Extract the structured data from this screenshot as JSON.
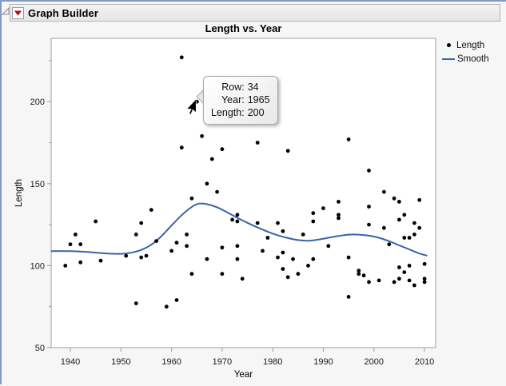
{
  "window": {
    "title": "Graph Builder"
  },
  "chart_data": {
    "type": "scatter",
    "title": "Length vs. Year",
    "xlabel": "Year",
    "ylabel": "Length",
    "xlim": [
      1936.2,
      2012.2
    ],
    "ylim": [
      50,
      238.6
    ],
    "x_ticks": [
      1940,
      1950,
      1960,
      1970,
      1980,
      1990,
      2000,
      2010
    ],
    "y_ticks": [
      50,
      100,
      150,
      200
    ],
    "y_minor_ticks": [
      75,
      125,
      175,
      225
    ],
    "grid": false,
    "legend_position": "top-right",
    "series": [
      {
        "name": "Length",
        "type": "scatter",
        "color": "#000000",
        "points": [
          [
            1939,
            100
          ],
          [
            1940,
            113
          ],
          [
            1941,
            119
          ],
          [
            1942,
            113
          ],
          [
            1942,
            102
          ],
          [
            1945,
            127
          ],
          [
            1946,
            103
          ],
          [
            1951,
            106
          ],
          [
            1953,
            119
          ],
          [
            1953,
            77
          ],
          [
            1954,
            105
          ],
          [
            1954,
            126
          ],
          [
            1955,
            106
          ],
          [
            1956,
            134
          ],
          [
            1957,
            115
          ],
          [
            1959,
            75
          ],
          [
            1960,
            109
          ],
          [
            1961,
            114
          ],
          [
            1961,
            79
          ],
          [
            1962,
            227
          ],
          [
            1962,
            172
          ],
          [
            1963,
            119
          ],
          [
            1963,
            112
          ],
          [
            1964,
            141
          ],
          [
            1964,
            95
          ],
          [
            1965,
            200
          ],
          [
            1966,
            179
          ],
          [
            1967,
            150
          ],
          [
            1967,
            104
          ],
          [
            1968,
            165
          ],
          [
            1969,
            145
          ],
          [
            1970,
            171
          ],
          [
            1970,
            111
          ],
          [
            1970,
            95
          ],
          [
            1972,
            128
          ],
          [
            1973,
            131
          ],
          [
            1973,
            127
          ],
          [
            1973,
            112
          ],
          [
            1973,
            104
          ],
          [
            1974,
            92
          ],
          [
            1977,
            175
          ],
          [
            1977,
            126
          ],
          [
            1978,
            109
          ],
          [
            1979,
            117
          ],
          [
            1981,
            126
          ],
          [
            1981,
            105
          ],
          [
            1982,
            121
          ],
          [
            1982,
            108
          ],
          [
            1982,
            98
          ],
          [
            1983,
            170
          ],
          [
            1983,
            93
          ],
          [
            1984,
            104
          ],
          [
            1985,
            95
          ],
          [
            1986,
            119
          ],
          [
            1987,
            100
          ],
          [
            1988,
            132
          ],
          [
            1988,
            127
          ],
          [
            1988,
            104
          ],
          [
            1990,
            135
          ],
          [
            1991,
            112
          ],
          [
            1993,
            139
          ],
          [
            1993,
            131
          ],
          [
            1993,
            129
          ],
          [
            1995,
            177
          ],
          [
            1995,
            105
          ],
          [
            1995,
            81
          ],
          [
            1997,
            97
          ],
          [
            1997,
            95
          ],
          [
            1998,
            94
          ],
          [
            1999,
            158
          ],
          [
            1999,
            136
          ],
          [
            1999,
            125
          ],
          [
            1999,
            90
          ],
          [
            2001,
            91
          ],
          [
            2002,
            145
          ],
          [
            2002,
            123
          ],
          [
            2003,
            113
          ],
          [
            2004,
            141
          ],
          [
            2004,
            90
          ],
          [
            2005,
            139
          ],
          [
            2005,
            128
          ],
          [
            2005,
            99
          ],
          [
            2005,
            92
          ],
          [
            2006,
            131
          ],
          [
            2006,
            117
          ],
          [
            2006,
            96
          ],
          [
            2007,
            117
          ],
          [
            2007,
            100
          ],
          [
            2007,
            91
          ],
          [
            2008,
            126
          ],
          [
            2008,
            119
          ],
          [
            2008,
            88
          ],
          [
            2009,
            140
          ],
          [
            2009,
            123
          ],
          [
            2010,
            101
          ],
          [
            2010,
            92
          ],
          [
            2010,
            90
          ]
        ]
      },
      {
        "name": "Smooth",
        "type": "line",
        "color": "#3a62ad",
        "points": [
          [
            1936.3,
            108.8
          ],
          [
            1938,
            108.9
          ],
          [
            1940,
            108.8
          ],
          [
            1942,
            108.6
          ],
          [
            1944,
            108.2
          ],
          [
            1946,
            107.7
          ],
          [
            1948,
            107.3
          ],
          [
            1950,
            107.2
          ],
          [
            1952,
            107.9
          ],
          [
            1954,
            109.6
          ],
          [
            1956,
            112.8
          ],
          [
            1958,
            118.0
          ],
          [
            1960,
            124.5
          ],
          [
            1962,
            130.8
          ],
          [
            1964,
            135.8
          ],
          [
            1965.5,
            137.8
          ],
          [
            1967,
            137.5
          ],
          [
            1969,
            135.6
          ],
          [
            1971,
            132.5
          ],
          [
            1973,
            129.2
          ],
          [
            1975,
            126.1
          ],
          [
            1977,
            123.3
          ],
          [
            1979,
            120.7
          ],
          [
            1981,
            118.5
          ],
          [
            1983,
            116.8
          ],
          [
            1985,
            115.6
          ],
          [
            1987,
            115.2
          ],
          [
            1989,
            115.9
          ],
          [
            1991,
            117.0
          ],
          [
            1993,
            118.1
          ],
          [
            1995,
            118.9
          ],
          [
            1997,
            118.9
          ],
          [
            1999,
            118.3
          ],
          [
            2001,
            117.0
          ],
          [
            2003,
            114.9
          ],
          [
            2005,
            112.4
          ],
          [
            2007,
            109.9
          ],
          [
            2009,
            107.4
          ],
          [
            2010.4,
            106.2
          ]
        ]
      }
    ]
  },
  "legend": {
    "entries": [
      {
        "label": "Length",
        "marker": "dot-icon",
        "color": "#000000"
      },
      {
        "label": "Smooth",
        "marker": "line-icon",
        "color": "#3a62ad"
      }
    ]
  },
  "tooltip": {
    "rows": [
      {
        "label": "Row:",
        "value": "34"
      },
      {
        "label": "Year:",
        "value": "1965"
      },
      {
        "label": "Length:",
        "value": "200"
      }
    ]
  },
  "highlight": {
    "year": 1965,
    "length": 200
  },
  "colors": {
    "smooth_line": "#3a62ad",
    "marker": "#000000",
    "frame": "#a0a0a0",
    "tick": "#9a9a9a",
    "red_triangle": "#c00000",
    "window_border": "#7e9cc4"
  }
}
